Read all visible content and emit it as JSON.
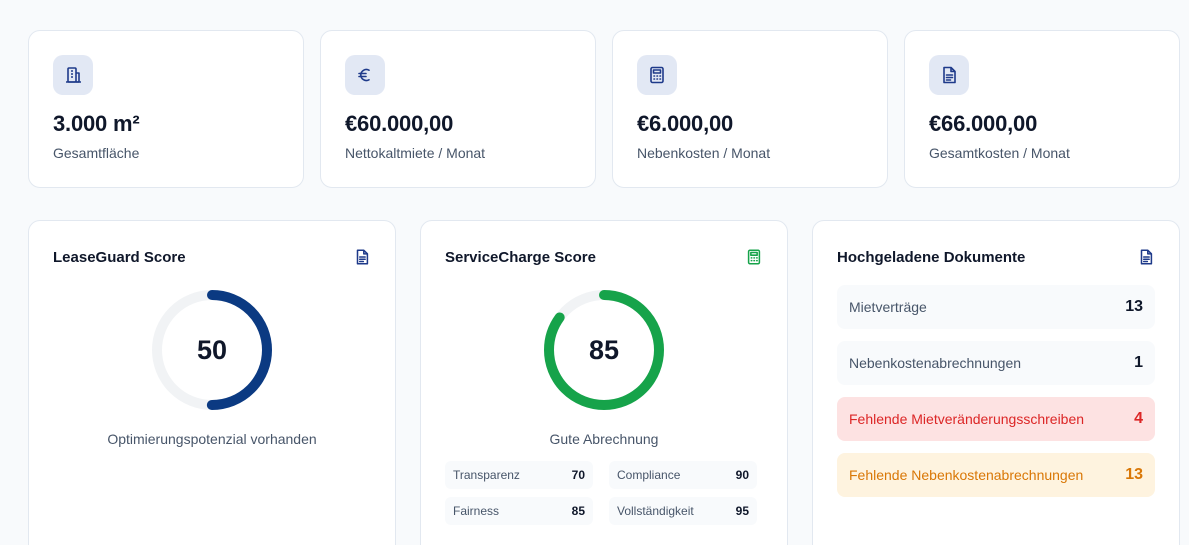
{
  "stats": [
    {
      "value": "3.000 m²",
      "label": "Gesamtfläche",
      "icon": "building-icon"
    },
    {
      "value": "€60.000,00",
      "label": "Nettokaltmiete / Monat",
      "icon": "euro-icon"
    },
    {
      "value": "€6.000,00",
      "label": "Nebenkosten / Monat",
      "icon": "calculator-icon"
    },
    {
      "value": "€66.000,00",
      "label": "Gesamtkosten / Monat",
      "icon": "document-icon"
    }
  ],
  "leaseguard": {
    "title": "LeaseGuard Score",
    "score": 50,
    "max": 100,
    "caption": "Optimierungspotenzial vorhanden",
    "color": "#0b3a82",
    "icon": "document-icon"
  },
  "servicecharge": {
    "title": "ServiceCharge Score",
    "score": 85,
    "max": 100,
    "caption": "Gute Abrechnung",
    "color": "#16a34a",
    "icon": "calculator-icon",
    "metrics": [
      {
        "name": "Transparenz",
        "value": "70"
      },
      {
        "name": "Compliance",
        "value": "90"
      },
      {
        "name": "Fairness",
        "value": "85"
      },
      {
        "name": "Vollständigkeit",
        "value": "95"
      }
    ]
  },
  "documents": {
    "title": "Hochgeladene Dokumente",
    "icon": "document-icon",
    "rows": [
      {
        "name": "Mietverträge",
        "count": "13",
        "status": "normal"
      },
      {
        "name": "Nebenkostenabrechnungen",
        "count": "1",
        "status": "normal"
      },
      {
        "name": "Fehlende Mietveränderungsschreiben",
        "count": "4",
        "status": "error"
      },
      {
        "name": "Fehlende Nebenkostenabrechnungen",
        "count": "13",
        "status": "warning"
      }
    ]
  },
  "colors": {
    "accent": "#0b3a82",
    "success": "#16a34a",
    "error": "#dc2626",
    "warning": "#d97706",
    "track": "#f1f3f5"
  }
}
